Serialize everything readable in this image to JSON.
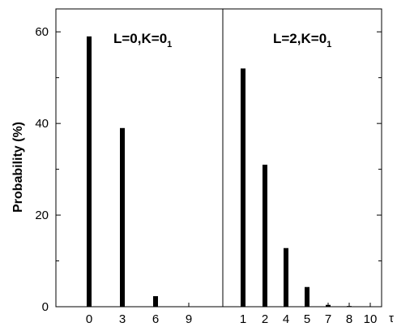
{
  "chart_data": {
    "type": "bar",
    "ylabel": "Probability (%)",
    "xlabel": "τ",
    "ylim": [
      0,
      65
    ],
    "yticks": [
      "0",
      "20",
      "40",
      "60"
    ],
    "ytick_values": [
      0,
      20,
      40,
      60
    ],
    "legend": "none",
    "grid": false,
    "panels": [
      {
        "label": "L=0,K=0",
        "label_subscript": "1",
        "categories": [
          "0",
          "3",
          "6",
          "9"
        ],
        "values": [
          59,
          39,
          2.3,
          0
        ]
      },
      {
        "label": "L=2,K=0",
        "label_subscript": "1",
        "categories": [
          "1",
          "2",
          "4",
          "5",
          "7",
          "8",
          "10"
        ],
        "values": [
          52,
          31,
          12.8,
          4.3,
          0.4,
          0.15,
          0
        ]
      }
    ]
  }
}
